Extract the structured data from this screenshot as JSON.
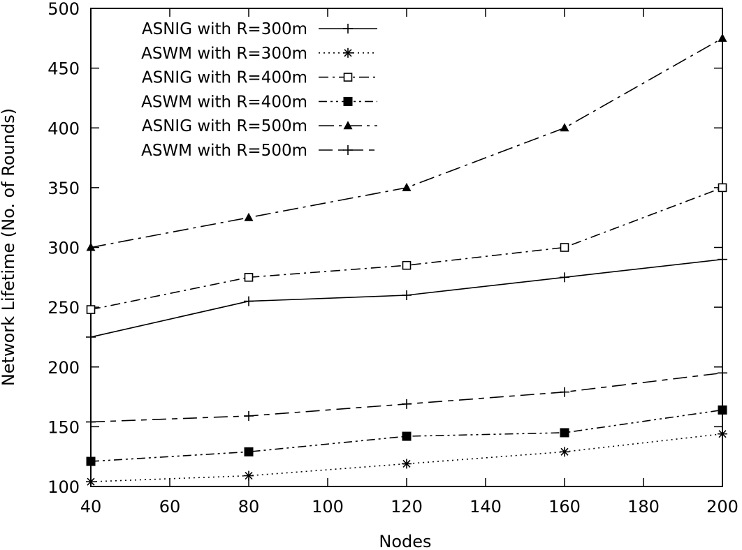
{
  "chart_data": {
    "type": "line",
    "title": "",
    "xlabel": "Nodes",
    "ylabel": "Network Lifetime (No. of Rounds)",
    "x": [
      40,
      80,
      120,
      160,
      200
    ],
    "xlim": [
      40,
      200
    ],
    "ylim": [
      100,
      500
    ],
    "xticks": [
      40,
      60,
      80,
      100,
      120,
      140,
      160,
      180,
      200
    ],
    "yticks": [
      100,
      150,
      200,
      250,
      300,
      350,
      400,
      450,
      500
    ],
    "grid": false,
    "legend_position": "top-left",
    "series": [
      {
        "name": "ASNIG with R=300m",
        "values": [
          225,
          255,
          260,
          275,
          290
        ],
        "marker": "plus",
        "dash": "solid",
        "color": "#000000"
      },
      {
        "name": "ASWM with R=300m",
        "values": [
          104,
          109,
          119,
          129,
          144
        ],
        "marker": "star",
        "dash": "dotted",
        "color": "#000000"
      },
      {
        "name": "ASNIG with R=400m",
        "values": [
          248,
          275,
          285,
          300,
          350
        ],
        "marker": "open-square",
        "dash": "dash-dot",
        "color": "#000000"
      },
      {
        "name": "ASWM with R=400m",
        "values": [
          121,
          129,
          142,
          145,
          164
        ],
        "marker": "filled-square",
        "dash": "dash-dot-dot",
        "color": "#000000"
      },
      {
        "name": "ASNIG with R=500m",
        "values": [
          300,
          325,
          350,
          400,
          475
        ],
        "marker": "filled-triangle",
        "dash": "long-dash-dot",
        "color": "#000000"
      },
      {
        "name": "ASWM with R=500m",
        "values": [
          154,
          159,
          169,
          179,
          195
        ],
        "marker": "plus",
        "dash": "long-dash-short",
        "color": "#000000"
      }
    ]
  }
}
